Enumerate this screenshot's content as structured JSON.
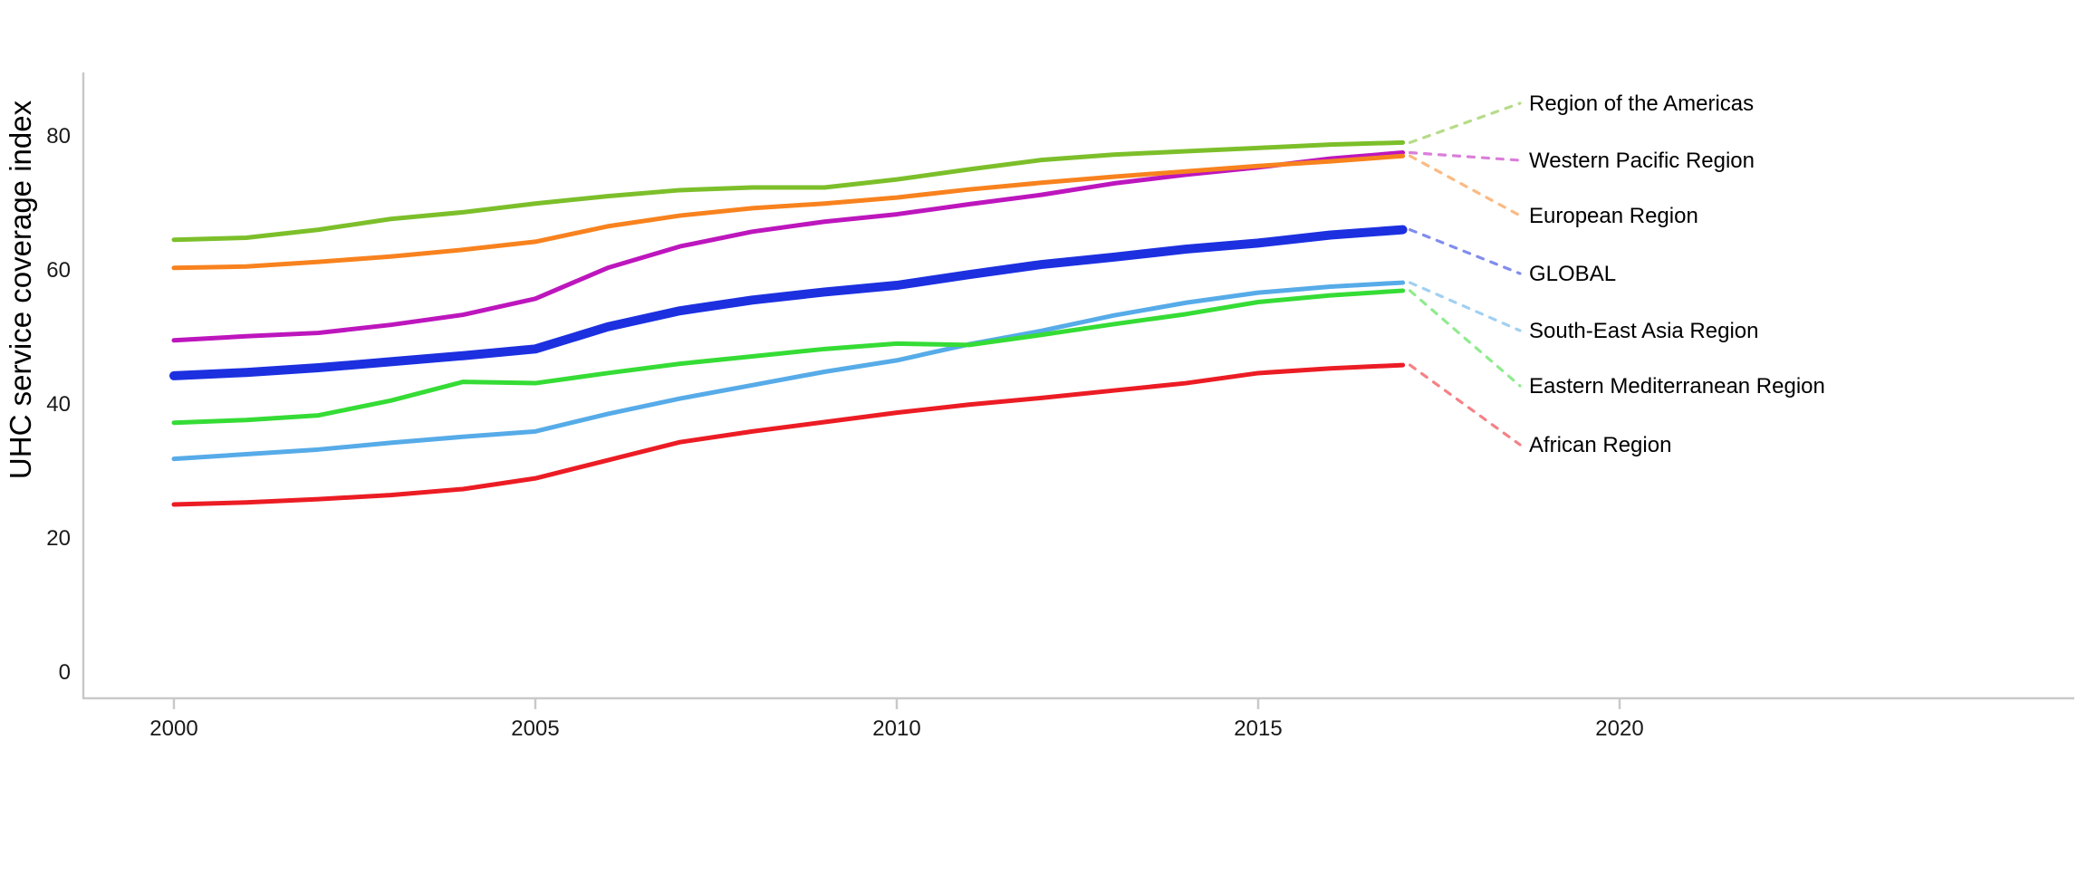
{
  "page": {
    "background": "#ffffff"
  },
  "chart_data": {
    "type": "line",
    "title": "",
    "xlabel": "",
    "ylabel": "UHC service coverage index",
    "x": [
      2000,
      2001,
      2002,
      2003,
      2004,
      2005,
      2006,
      2007,
      2008,
      2009,
      2010,
      2011,
      2012,
      2013,
      2014,
      2015,
      2016,
      2017
    ],
    "x_ticks": [
      2000,
      2005,
      2010,
      2015,
      2020
    ],
    "y_ticks": [
      0,
      20,
      40,
      60,
      80
    ],
    "xlim": [
      1998.7,
      2026.5
    ],
    "ylim": [
      0,
      93.5
    ],
    "grid": false,
    "legend_position": "right-end-labels",
    "axis_color": "#c9c9c9",
    "tick_label_color": "#1a1a1a",
    "leader_dash_opacity": 0.55,
    "series": [
      {
        "name": "Region of the Americas",
        "color": "#7CBF2A",
        "line_width": 5,
        "values": [
          64.5,
          64.8,
          66.0,
          67.6,
          68.6,
          69.9,
          71.0,
          71.9,
          72.3,
          72.3,
          73.5,
          75.0,
          76.4,
          77.2,
          77.7,
          78.2,
          78.7,
          79.0
        ]
      },
      {
        "name": "Western Pacific Region",
        "color": "#BD16BD",
        "line_width": 5,
        "values": [
          49.5,
          50.1,
          50.6,
          51.8,
          53.3,
          55.7,
          60.3,
          63.5,
          65.7,
          67.2,
          68.3,
          69.8,
          71.2,
          72.9,
          74.2,
          75.3,
          76.6,
          77.5
        ]
      },
      {
        "name": "European Region",
        "color": "#F8821E",
        "line_width": 5,
        "values": [
          60.3,
          60.5,
          61.2,
          62.0,
          63.0,
          64.2,
          66.5,
          68.1,
          69.2,
          69.9,
          70.8,
          72.0,
          73.0,
          73.9,
          74.7,
          75.5,
          76.2,
          77.0
        ]
      },
      {
        "name": "GLOBAL",
        "color": "#1C30E0",
        "line_width": 10,
        "values": [
          44.2,
          44.7,
          45.4,
          46.3,
          47.2,
          48.2,
          51.5,
          53.9,
          55.5,
          56.7,
          57.7,
          59.3,
          60.8,
          61.9,
          63.1,
          64.0,
          65.2,
          66.0
        ]
      },
      {
        "name": "South-East Asia Region",
        "color": "#56ABE8",
        "line_width": 5,
        "values": [
          31.8,
          32.5,
          33.2,
          34.2,
          35.1,
          35.9,
          38.5,
          40.8,
          42.8,
          44.8,
          46.5,
          48.9,
          50.9,
          53.2,
          55.1,
          56.6,
          57.5,
          58.1
        ]
      },
      {
        "name": "Eastern Mediterranean Region",
        "color": "#35DC35",
        "line_width": 5,
        "values": [
          37.2,
          37.6,
          38.3,
          40.5,
          43.3,
          43.1,
          44.6,
          46.0,
          47.1,
          48.2,
          49.0,
          48.8,
          50.3,
          51.9,
          53.4,
          55.2,
          56.2,
          56.9
        ]
      },
      {
        "name": "African Region",
        "color": "#EC1C24",
        "line_width": 5,
        "values": [
          25.0,
          25.3,
          25.8,
          26.4,
          27.3,
          28.9,
          31.6,
          34.3,
          35.9,
          37.3,
          38.7,
          39.9,
          40.9,
          42.0,
          43.1,
          44.6,
          45.3,
          45.8
        ]
      }
    ],
    "end_labels": [
      "Region of the Americas",
      "Western Pacific Region",
      "European Region",
      "GLOBAL",
      "South-East Asia Region",
      "Eastern Mediterranean Region",
      "African Region"
    ]
  }
}
